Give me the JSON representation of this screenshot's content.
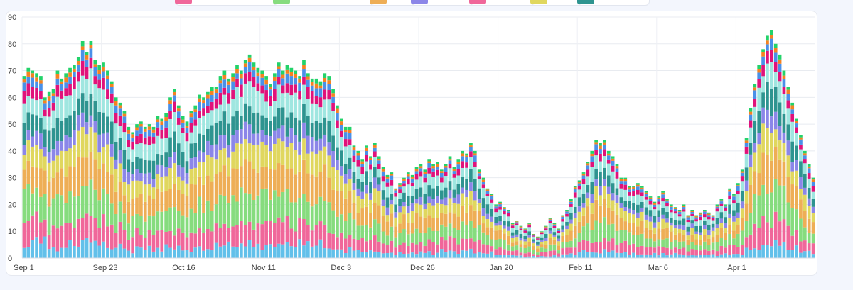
{
  "chart_data": {
    "type": "bar",
    "stacked": true,
    "ylim": [
      0,
      90
    ],
    "yticks": [
      0,
      10,
      20,
      30,
      40,
      50,
      60,
      70,
      80,
      90
    ],
    "grid": true,
    "legend_position": "top",
    "xtick_labels": [
      "Sep 1",
      "Sep 23",
      "Oct 16",
      "Nov 11",
      "Dec 3",
      "Dec 26",
      "Jan 20",
      "Feb 11",
      "Mar 6",
      "Apr 1"
    ],
    "xtick_index": [
      0,
      19,
      38,
      57,
      76,
      95,
      114,
      133,
      152,
      171
    ],
    "n_bars": 190,
    "totals": [
      68,
      71,
      70,
      69,
      68,
      60,
      62,
      63,
      70,
      67,
      69,
      71,
      72,
      75,
      81,
      77,
      81,
      74,
      72,
      73,
      70,
      66,
      60,
      58,
      55,
      49,
      47,
      50,
      51,
      49,
      50,
      49,
      53,
      52,
      54,
      60,
      63,
      57,
      53,
      51,
      55,
      57,
      61,
      60,
      62,
      64,
      64,
      68,
      70,
      67,
      69,
      72,
      70,
      74,
      76,
      73,
      71,
      70,
      68,
      65,
      69,
      73,
      70,
      72,
      71,
      70,
      68,
      74,
      69,
      67,
      67,
      66,
      69,
      68,
      63,
      57,
      52,
      49,
      49,
      42,
      40,
      37,
      42,
      38,
      43,
      38,
      34,
      31,
      32,
      26,
      28,
      30,
      32,
      31,
      34,
      35,
      33,
      37,
      35,
      36,
      33,
      35,
      38,
      34,
      37,
      40,
      39,
      43,
      40,
      33,
      30,
      26,
      24,
      20,
      21,
      19,
      18,
      13,
      14,
      12,
      11,
      13,
      9,
      8,
      10,
      12,
      15,
      13,
      11,
      16,
      18,
      22,
      27,
      29,
      32,
      36,
      40,
      44,
      43,
      44,
      40,
      38,
      35,
      30,
      30,
      27,
      27,
      28,
      27,
      25,
      23,
      21,
      23,
      25,
      22,
      20,
      19,
      18,
      20,
      16,
      18,
      16,
      17,
      18,
      17,
      16,
      20,
      22,
      20,
      26,
      24,
      28,
      33,
      45,
      56,
      65,
      72,
      78,
      83,
      85,
      80,
      76,
      70,
      64,
      58,
      52,
      46,
      40,
      35,
      30
    ],
    "series": [
      {
        "color": "#62c0ea",
        "fractions": [
          0.07,
          0.06,
          0.08,
          0.09,
          0.07,
          0.1,
          0.05,
          0.06,
          0.04,
          0.05,
          0.06,
          0.08,
          0.05,
          0.06,
          0.07,
          0.08,
          0.06,
          0.07,
          0.05,
          0.08,
          0.06,
          0.07,
          0.05,
          0.09,
          0.06,
          0.07,
          0.05,
          0.08,
          0.06,
          0.05,
          0.07,
          0.06,
          0.08,
          0.05,
          0.07,
          0.06,
          0.05,
          0.08,
          0.06,
          0.07,
          0.05,
          0.06,
          0.07,
          0.05,
          0.08,
          0.06,
          0.07,
          0.05,
          0.06,
          0.08,
          0.05,
          0.07,
          0.06,
          0.05,
          0.08,
          0.06,
          0.07,
          0.05,
          0.06,
          0.07,
          0.05,
          0.08,
          0.06,
          0.07,
          0.05,
          0.06,
          0.08,
          0.05,
          0.07,
          0.06,
          0.05,
          0.08,
          0.06,
          0.07,
          0.05,
          0.06,
          0.07,
          0.05,
          0.08,
          0.06,
          0.07,
          0.05,
          0.06,
          0.08,
          0.05,
          0.07,
          0.06,
          0.05,
          0.08,
          0.06,
          0.07,
          0.05,
          0.06,
          0.07,
          0.05,
          0.08,
          0.06,
          0.07,
          0.05,
          0.06,
          0.08,
          0.05,
          0.07,
          0.06,
          0.05,
          0.08,
          0.06,
          0.07,
          0.05,
          0.06,
          0.07,
          0.05,
          0.08,
          0.06,
          0.07,
          0.05,
          0.06,
          0.08,
          0.05,
          0.07,
          0.06,
          0.05,
          0.08,
          0.06,
          0.07,
          0.05,
          0.06,
          0.07,
          0.05,
          0.08,
          0.06,
          0.07,
          0.05,
          0.06,
          0.08,
          0.05,
          0.07,
          0.06,
          0.05,
          0.08,
          0.06,
          0.07,
          0.05,
          0.06,
          0.07,
          0.05,
          0.08,
          0.06,
          0.07,
          0.05,
          0.06,
          0.08,
          0.05,
          0.07,
          0.06,
          0.05,
          0.08,
          0.06,
          0.07,
          0.05,
          0.06,
          0.07,
          0.05,
          0.08,
          0.06,
          0.07,
          0.05,
          0.06,
          0.08,
          0.05,
          0.07,
          0.06,
          0.05,
          0.08,
          0.06,
          0.07,
          0.05,
          0.06,
          0.07,
          0.05,
          0.08,
          0.06,
          0.07,
          0.05,
          0.06,
          0.08,
          0.05,
          0.07,
          0.06,
          0.05,
          0.08,
          0.06
        ]
      },
      {
        "color": "#f0679a",
        "fractions": [
          0.11
        ]
      },
      {
        "color": "#86dc7e",
        "fractions": [
          0.14
        ]
      },
      {
        "color": "#eeae56",
        "fractions": [
          0.14
        ]
      },
      {
        "color": "#e0d75e",
        "fractions": [
          0.11
        ]
      },
      {
        "color": "#8b86e8",
        "fractions": [
          0.07
        ]
      },
      {
        "color": "#2e9490",
        "fractions": [
          0.1
        ]
      },
      {
        "color": "#9fe6e0",
        "fractions": [
          0.1
        ]
      },
      {
        "color": "#e0127a",
        "fractions": [
          0.05
        ]
      },
      {
        "color": "#4a90e8",
        "fractions": [
          0.04
        ]
      },
      {
        "color": "#f58220",
        "fractions": [
          0.02
        ]
      },
      {
        "color": "#22d36a",
        "fractions": [
          0.02
        ]
      }
    ]
  },
  "legend": [
    {
      "color": "#f0679a"
    },
    {
      "color": "#86dc7e"
    },
    {
      "color": "#eeae56"
    },
    {
      "color": "#8b86e8"
    },
    {
      "color": "#f0679a"
    },
    {
      "color": "#e0d75e"
    },
    {
      "color": "#2e9490"
    }
  ]
}
